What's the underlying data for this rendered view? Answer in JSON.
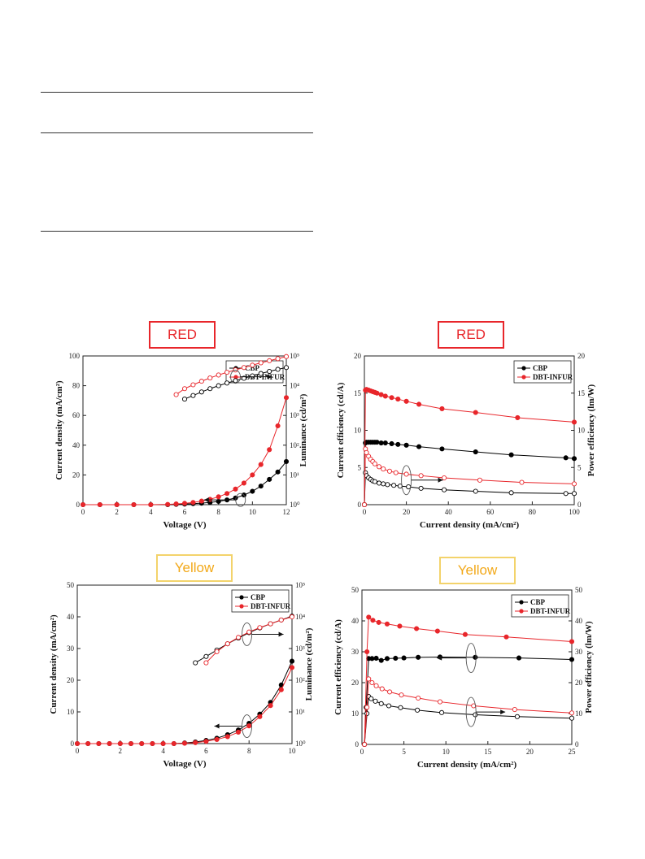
{
  "captions": {
    "p1": "RED",
    "p2": "RED",
    "p3": "Yellow",
    "p4": "Yellow"
  },
  "colors": {
    "CBP": "#000000",
    "DBT-INFUR": "#e8262b",
    "red_caption": "#e8262b",
    "yellow_caption": "#f2a818",
    "yellow_border": "#f3d36b"
  },
  "chart_data": [
    {
      "id": "p1",
      "type": "line",
      "xlabel": "Voltage (V)",
      "ylabel": "Current density (mA/cm²)",
      "y2label": "Luminance (cd/m²)",
      "xlim": [
        0,
        12
      ],
      "ylim": [
        0,
        100
      ],
      "xticks": [
        "0",
        "2",
        "4",
        "6",
        "8",
        "10",
        "12"
      ],
      "yticks": [
        "0",
        "20",
        "40",
        "60",
        "80",
        "100"
      ],
      "y2ticks": [
        "10⁰",
        "10¹",
        "10²",
        "10³",
        "10⁴",
        "10⁵"
      ],
      "y2lim": [
        0,
        5
      ],
      "legend": [
        "CBP",
        "DBT-INFUR"
      ],
      "series": [
        {
          "name": "CBP",
          "axis": "left",
          "marker": "filled",
          "x": [
            0,
            1,
            2,
            3,
            4,
            5,
            5.5,
            6,
            6.5,
            7,
            7.5,
            8,
            8.5,
            9,
            9.5,
            10,
            10.5,
            11,
            11.5,
            12
          ],
          "y": [
            0,
            0,
            0,
            0,
            0,
            0,
            0.2,
            0.4,
            0.7,
            1.0,
            1.5,
            2.2,
            3.2,
            4.5,
            6.5,
            9,
            12.5,
            17,
            22,
            29
          ]
        },
        {
          "name": "DBT-INFUR",
          "axis": "left",
          "marker": "filled",
          "x": [
            0,
            1,
            2,
            3,
            4,
            5,
            5.5,
            6,
            6.5,
            7,
            7.5,
            8,
            8.5,
            9,
            9.5,
            10,
            10.5,
            11,
            11.5,
            12
          ],
          "y": [
            0,
            0,
            0,
            0,
            0,
            0.2,
            0.5,
            0.9,
            1.5,
            2.4,
            3.6,
            5.3,
            7.5,
            10.5,
            14.5,
            20,
            27,
            37,
            53,
            72
          ]
        },
        {
          "name": "CBP",
          "axis": "right",
          "marker": "open",
          "x": [
            6,
            6.5,
            7,
            7.5,
            8,
            8.5,
            9,
            9.5,
            10,
            10.5,
            11,
            11.5,
            12
          ],
          "y": [
            3.55,
            3.67,
            3.79,
            3.9,
            4.0,
            4.09,
            4.17,
            4.25,
            4.33,
            4.41,
            4.48,
            4.55,
            4.61
          ]
        },
        {
          "name": "DBT-INFUR",
          "axis": "right",
          "marker": "open",
          "x": [
            5.5,
            6,
            6.5,
            7,
            7.5,
            8,
            8.5,
            9,
            9.5,
            10,
            10.5,
            11,
            11.5,
            12
          ],
          "y": [
            3.7,
            3.9,
            4.03,
            4.15,
            4.26,
            4.36,
            4.45,
            4.53,
            4.61,
            4.69,
            4.77,
            4.84,
            4.91,
            4.98
          ]
        }
      ]
    },
    {
      "id": "p2",
      "type": "line",
      "xlabel": "Current density (mA/cm²)",
      "ylabel": "Current efficiency (cd/A)",
      "y2label": "Power efficiency (lm/W)",
      "xlim": [
        0,
        100
      ],
      "ylim": [
        0,
        20
      ],
      "y2lim": [
        0,
        20
      ],
      "xticks": [
        "0",
        "20",
        "40",
        "60",
        "80",
        "100"
      ],
      "yticks": [
        "0",
        "5",
        "10",
        "15",
        "20"
      ],
      "y2ticks": [
        "0",
        "5",
        "10",
        "15",
        "20"
      ],
      "legend": [
        "CBP",
        "DBT-INFUR"
      ],
      "series": [
        {
          "name": "CBP",
          "axis": "left",
          "marker": "filled",
          "x": [
            0,
            0.5,
            1,
            2,
            3,
            4,
            5,
            6,
            8,
            10,
            13,
            16,
            20,
            26,
            37,
            53,
            70,
            96,
            100
          ],
          "y": [
            0,
            8.3,
            8.4,
            8.4,
            8.4,
            8.4,
            8.4,
            8.4,
            8.3,
            8.3,
            8.2,
            8.1,
            8.0,
            7.8,
            7.5,
            7.1,
            6.7,
            6.3,
            6.2
          ]
        },
        {
          "name": "DBT-INFUR",
          "axis": "left",
          "marker": "filled",
          "x": [
            0,
            0.5,
            1,
            2,
            3,
            4,
            5,
            6,
            8,
            10,
            13,
            16,
            20,
            26,
            37,
            53,
            73,
            100
          ],
          "y": [
            0,
            15.4,
            15.5,
            15.4,
            15.3,
            15.2,
            15.1,
            15.0,
            14.8,
            14.6,
            14.4,
            14.2,
            13.9,
            13.5,
            12.9,
            12.4,
            11.7,
            11.1
          ]
        },
        {
          "name": "CBP",
          "axis": "right",
          "marker": "open",
          "x": [
            0,
            0.5,
            1,
            2,
            3,
            4,
            5,
            7,
            9,
            11,
            14,
            17,
            21,
            27,
            38,
            53,
            70,
            96,
            100
          ],
          "y": [
            0,
            4.3,
            3.9,
            3.6,
            3.4,
            3.2,
            3.1,
            2.9,
            2.8,
            2.7,
            2.6,
            2.5,
            2.4,
            2.2,
            2.0,
            1.8,
            1.6,
            1.5,
            1.5
          ]
        },
        {
          "name": "DBT-INFUR",
          "axis": "right",
          "marker": "open",
          "x": [
            0,
            0.5,
            1,
            2,
            3,
            4,
            5,
            7,
            9,
            12,
            15,
            20,
            27,
            38,
            55,
            75,
            100
          ],
          "y": [
            0,
            7.5,
            7.0,
            6.5,
            6.1,
            5.8,
            5.5,
            5.1,
            4.8,
            4.5,
            4.3,
            4.1,
            3.9,
            3.6,
            3.3,
            3.0,
            2.8
          ]
        }
      ]
    },
    {
      "id": "p3",
      "type": "line",
      "xlabel": "Voltage (V)",
      "ylabel": "Current density (mA/cm²)",
      "y2label": "Luminance (cd/m²)",
      "xlim": [
        0,
        10
      ],
      "ylim": [
        0,
        50
      ],
      "y2lim": [
        0,
        5
      ],
      "xticks": [
        "0",
        "2",
        "4",
        "6",
        "8",
        "10"
      ],
      "yticks": [
        "0",
        "10",
        "20",
        "30",
        "40",
        "50"
      ],
      "y2ticks": [
        "10⁰",
        "10¹",
        "10²",
        "10³",
        "10⁴",
        "10⁵"
      ],
      "legend": [
        "CBP",
        "DBT-INFUR"
      ],
      "series": [
        {
          "name": "CBP",
          "axis": "left",
          "marker": "filled",
          "x": [
            0,
            0.5,
            1,
            1.5,
            2,
            2.5,
            3,
            3.5,
            4,
            4.5,
            5,
            5.5,
            6,
            6.5,
            7,
            7.5,
            8,
            8.5,
            9,
            9.5,
            10
          ],
          "y": [
            0,
            0,
            0,
            0,
            0,
            0,
            0,
            0,
            0,
            0,
            0.2,
            0.5,
            1.0,
            1.7,
            2.8,
            4.3,
            6.4,
            9.3,
            13,
            18.5,
            26
          ]
        },
        {
          "name": "DBT-INFUR",
          "axis": "left",
          "marker": "filled",
          "x": [
            0,
            0.5,
            1,
            1.5,
            2,
            2.5,
            3,
            3.5,
            4,
            4.5,
            5,
            5.5,
            6,
            6.5,
            7,
            7.5,
            8,
            8.5,
            9,
            9.5,
            10
          ],
          "y": [
            0,
            0,
            0,
            0,
            0,
            0,
            0,
            0,
            0,
            0,
            0.1,
            0.3,
            0.7,
            1.3,
            2.2,
            3.6,
            5.6,
            8.5,
            12,
            17,
            24
          ]
        },
        {
          "name": "CBP",
          "axis": "right",
          "marker": "open",
          "x": [
            5.5,
            6,
            6.5,
            7,
            7.5,
            8,
            8.5,
            9,
            9.5,
            10
          ],
          "y": [
            2.55,
            2.75,
            2.95,
            3.15,
            3.33,
            3.5,
            3.65,
            3.78,
            3.9,
            4.02
          ]
        },
        {
          "name": "DBT-INFUR",
          "axis": "right",
          "marker": "open",
          "x": [
            6,
            6.5,
            7,
            7.5,
            8,
            8.5,
            9,
            9.5,
            10
          ],
          "y": [
            2.55,
            2.9,
            3.15,
            3.35,
            3.52,
            3.66,
            3.78,
            3.9,
            4.0
          ]
        }
      ]
    },
    {
      "id": "p4",
      "type": "line",
      "xlabel": "Current density (mA/cm²)",
      "ylabel": "Current efficiency (cd/A)",
      "y2label": "Power efficiency (lm/W)",
      "xlim": [
        0,
        25
      ],
      "ylim": [
        0,
        50
      ],
      "y2lim": [
        0,
        50
      ],
      "xticks": [
        "0",
        "5",
        "10",
        "15",
        "20",
        "25"
      ],
      "yticks": [
        "0",
        "10",
        "20",
        "30",
        "40",
        "50"
      ],
      "y2ticks": [
        "0",
        "10",
        "20",
        "30",
        "40",
        "50"
      ],
      "legend": [
        "CBP",
        "DBT-INFUR"
      ],
      "series": [
        {
          "name": "CBP",
          "axis": "left",
          "marker": "filled",
          "x": [
            0.3,
            0.5,
            0.8,
            1.2,
            1.7,
            2.3,
            3,
            4,
            5,
            6.7,
            9.3,
            13.5,
            18.7,
            25
          ],
          "y": [
            0,
            12,
            27.8,
            27.8,
            27.9,
            27.2,
            27.8,
            27.9,
            28.0,
            28.2,
            28.3,
            28.2,
            28.0,
            27.5
          ]
        },
        {
          "name": "DBT-INFUR",
          "axis": "left",
          "marker": "filled",
          "x": [
            0.3,
            0.6,
            0.8,
            1.3,
            2,
            3,
            4.5,
            6.5,
            9,
            12.3,
            17.2,
            25
          ],
          "y": [
            0,
            30,
            41.2,
            40.2,
            39.5,
            39.0,
            38.3,
            37.5,
            36.7,
            35.6,
            34.8,
            33.3
          ]
        },
        {
          "name": "CBP",
          "axis": "right",
          "marker": "open",
          "x": [
            0.3,
            0.6,
            0.8,
            1.1,
            1.6,
            2.3,
            3.2,
            4.6,
            6.6,
            9.5,
            13.5,
            18.5,
            25
          ],
          "y": [
            0,
            10,
            15.5,
            14.8,
            14.0,
            13.2,
            12.5,
            11.9,
            11.1,
            10.3,
            9.6,
            9.0,
            8.5
          ]
        },
        {
          "name": "DBT-INFUR",
          "axis": "right",
          "marker": "open",
          "x": [
            0.3,
            0.6,
            0.8,
            1.2,
            1.7,
            2.4,
            3.3,
            4.7,
            6.7,
            9.3,
            13.3,
            18.2,
            25
          ],
          "y": [
            0,
            12,
            21.2,
            20.0,
            19.0,
            18.0,
            17.0,
            16.0,
            15.0,
            13.8,
            12.5,
            11.3,
            10.2
          ]
        }
      ]
    }
  ]
}
